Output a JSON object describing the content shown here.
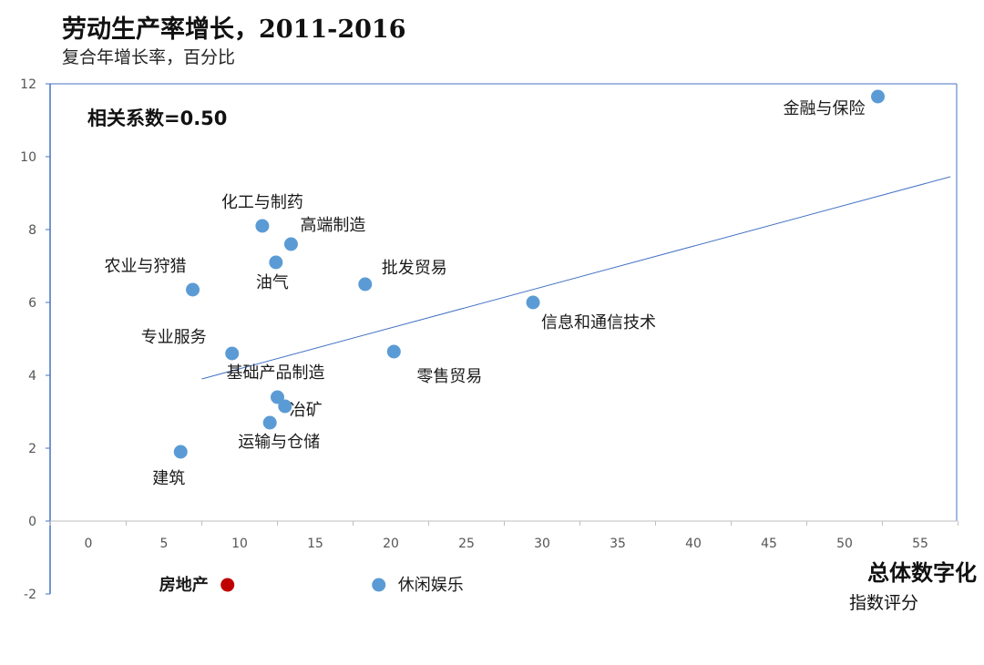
{
  "chart_data": {
    "type": "scatter",
    "title": "劳动生产率增长，2011-2016",
    "subtitle": "复合年增长率，百分比",
    "xlabel": "总体数字化",
    "xlabel_sub": "指数评分",
    "annotation": "相关系数=0.50",
    "xlim": [
      -5,
      57
    ],
    "ylim": [
      -2,
      12
    ],
    "xticks": [
      0,
      5,
      10,
      15,
      20,
      25,
      30,
      35,
      40,
      45,
      50,
      55
    ],
    "yticks": [
      -2,
      0,
      2,
      4,
      6,
      8,
      10,
      12
    ],
    "trendline": {
      "x": [
        7.5,
        57
      ],
      "y": [
        3.9,
        9.45
      ]
    },
    "points": [
      {
        "label": "金融与保险",
        "x": 52.2,
        "y": 11.65,
        "color": "#5b9bd5"
      },
      {
        "label": "化工与制药",
        "x": 11.5,
        "y": 8.1,
        "color": "#5b9bd5"
      },
      {
        "label": "高端制造",
        "x": 13.4,
        "y": 7.6,
        "color": "#5b9bd5"
      },
      {
        "label": "油气",
        "x": 12.4,
        "y": 7.1,
        "color": "#5b9bd5"
      },
      {
        "label": "农业与狩猎",
        "x": 6.9,
        "y": 6.35,
        "color": "#5b9bd5"
      },
      {
        "label": "批发贸易",
        "x": 18.3,
        "y": 6.5,
        "color": "#5b9bd5"
      },
      {
        "label": "信息和通信技术",
        "x": 29.4,
        "y": 6.0,
        "color": "#5b9bd5"
      },
      {
        "label": "专业服务",
        "x": 9.5,
        "y": 4.6,
        "color": "#5b9bd5"
      },
      {
        "label": "基础产品制造",
        "x": 12.5,
        "y": 3.4,
        "color": "#5b9bd5"
      },
      {
        "label": "零售贸易",
        "x": 20.2,
        "y": 4.65,
        "color": "#5b9bd5"
      },
      {
        "label": "冶矿",
        "x": 13.0,
        "y": 3.15,
        "color": "#5b9bd5"
      },
      {
        "label": "运输与仓储",
        "x": 12.0,
        "y": 2.7,
        "color": "#5b9bd5"
      },
      {
        "label": "建筑",
        "x": 6.1,
        "y": 1.9,
        "color": "#5b9bd5"
      },
      {
        "label": "房地产",
        "x": 9.2,
        "y": -1.75,
        "color": "#c00000"
      },
      {
        "label": "休闲娱乐",
        "x": 19.2,
        "y": -1.75,
        "color": "#5b9bd5"
      }
    ]
  },
  "colors": {
    "axis": "#4472c4",
    "grid_tick": "#bfbfbf",
    "point": "#5b9bd5",
    "trendline": "#4472c4",
    "outlier_label": "#c55a11"
  }
}
